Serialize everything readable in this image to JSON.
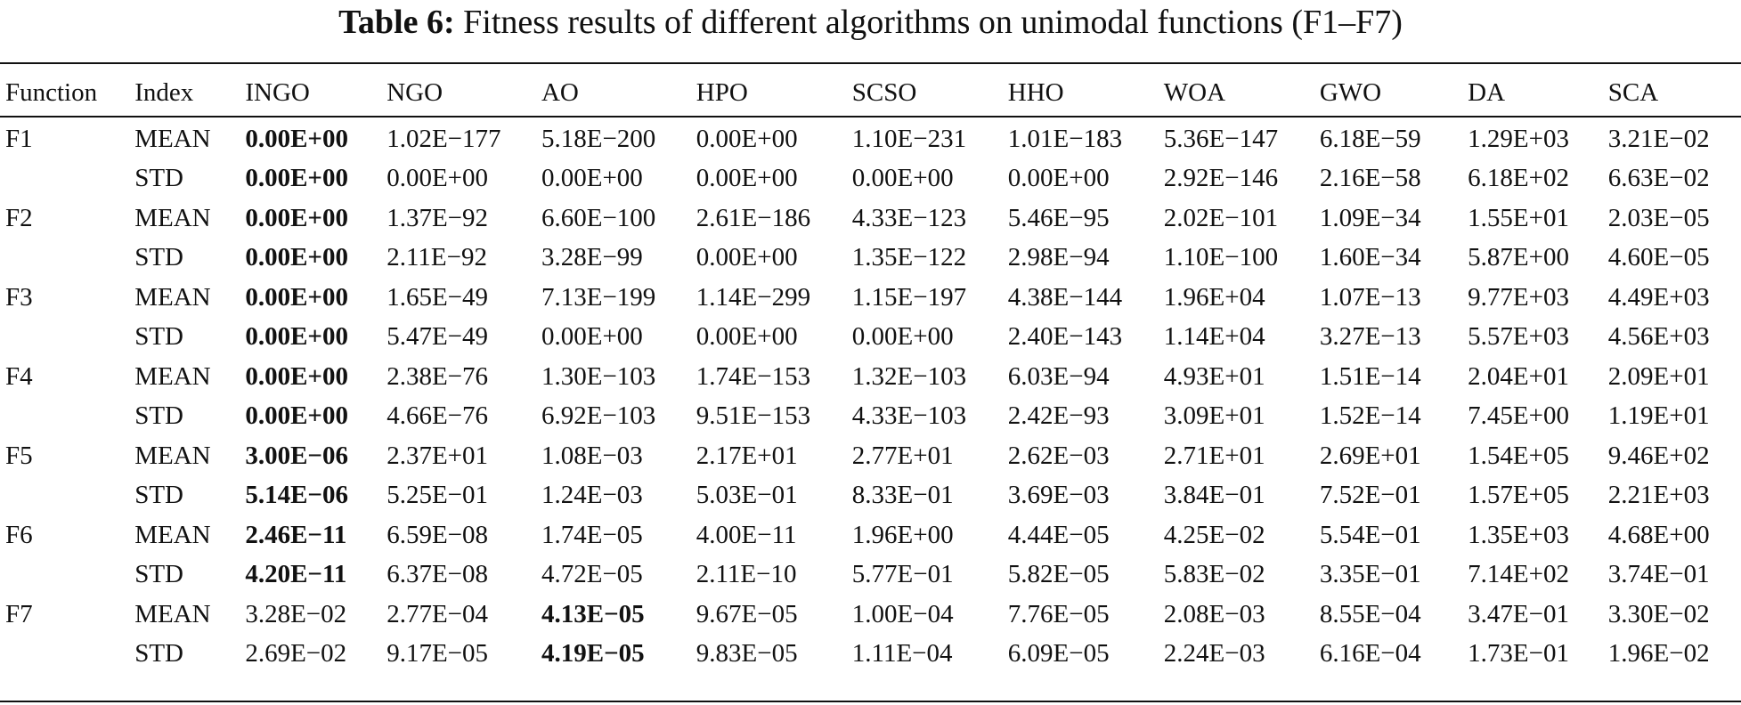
{
  "caption": {
    "label": "Table 6:",
    "text": "Fitness results of different algorithms on unimodal functions (F1–F7)"
  },
  "headers": [
    "Function",
    "Index",
    "INGO",
    "NGO",
    "AO",
    "HPO",
    "SCSO",
    "HHO",
    "WOA",
    "GWO",
    "DA",
    "SCA"
  ],
  "rows": [
    {
      "fn": "F1",
      "idx": "MEAN",
      "vals": [
        "0.00E+00",
        "1.02E−177",
        "5.18E−200",
        "0.00E+00",
        "1.10E−231",
        "1.01E−183",
        "5.36E−147",
        "6.18E−59",
        "1.29E+03",
        "3.21E−02"
      ],
      "bold": [
        0
      ]
    },
    {
      "fn": "",
      "idx": "STD",
      "vals": [
        "0.00E+00",
        "0.00E+00",
        "0.00E+00",
        "0.00E+00",
        "0.00E+00",
        "0.00E+00",
        "2.92E−146",
        "2.16E−58",
        "6.18E+02",
        "6.63E−02"
      ],
      "bold": [
        0
      ]
    },
    {
      "fn": "F2",
      "idx": "MEAN",
      "vals": [
        "0.00E+00",
        "1.37E−92",
        "6.60E−100",
        "2.61E−186",
        "4.33E−123",
        "5.46E−95",
        "2.02E−101",
        "1.09E−34",
        "1.55E+01",
        "2.03E−05"
      ],
      "bold": [
        0
      ]
    },
    {
      "fn": "",
      "idx": "STD",
      "vals": [
        "0.00E+00",
        "2.11E−92",
        "3.28E−99",
        "0.00E+00",
        "1.35E−122",
        "2.98E−94",
        "1.10E−100",
        "1.60E−34",
        "5.87E+00",
        "4.60E−05"
      ],
      "bold": [
        0
      ]
    },
    {
      "fn": "F3",
      "idx": "MEAN",
      "vals": [
        "0.00E+00",
        "1.65E−49",
        "7.13E−199",
        "1.14E−299",
        "1.15E−197",
        "4.38E−144",
        "1.96E+04",
        "1.07E−13",
        "9.77E+03",
        "4.49E+03"
      ],
      "bold": [
        0
      ]
    },
    {
      "fn": "",
      "idx": "STD",
      "vals": [
        "0.00E+00",
        "5.47E−49",
        "0.00E+00",
        "0.00E+00",
        "0.00E+00",
        "2.40E−143",
        "1.14E+04",
        "3.27E−13",
        "5.57E+03",
        "4.56E+03"
      ],
      "bold": [
        0
      ]
    },
    {
      "fn": "F4",
      "idx": "MEAN",
      "vals": [
        "0.00E+00",
        "2.38E−76",
        "1.30E−103",
        "1.74E−153",
        "1.32E−103",
        "6.03E−94",
        "4.93E+01",
        "1.51E−14",
        "2.04E+01",
        "2.09E+01"
      ],
      "bold": [
        0
      ]
    },
    {
      "fn": "",
      "idx": "STD",
      "vals": [
        "0.00E+00",
        "4.66E−76",
        "6.92E−103",
        "9.51E−153",
        "4.33E−103",
        "2.42E−93",
        "3.09E+01",
        "1.52E−14",
        "7.45E+00",
        "1.19E+01"
      ],
      "bold": [
        0
      ]
    },
    {
      "fn": "F5",
      "idx": "MEAN",
      "vals": [
        "3.00E−06",
        "2.37E+01",
        "1.08E−03",
        "2.17E+01",
        "2.77E+01",
        "2.62E−03",
        "2.71E+01",
        "2.69E+01",
        "1.54E+05",
        "9.46E+02"
      ],
      "bold": [
        0
      ]
    },
    {
      "fn": "",
      "idx": "STD",
      "vals": [
        "5.14E−06",
        "5.25E−01",
        "1.24E−03",
        "5.03E−01",
        "8.33E−01",
        "3.69E−03",
        "3.84E−01",
        "7.52E−01",
        "1.57E+05",
        "2.21E+03"
      ],
      "bold": [
        0
      ]
    },
    {
      "fn": "F6",
      "idx": "MEAN",
      "vals": [
        "2.46E−11",
        "6.59E−08",
        "1.74E−05",
        "4.00E−11",
        "1.96E+00",
        "4.44E−05",
        "4.25E−02",
        "5.54E−01",
        "1.35E+03",
        "4.68E+00"
      ],
      "bold": [
        0
      ]
    },
    {
      "fn": "",
      "idx": "STD",
      "vals": [
        "4.20E−11",
        "6.37E−08",
        "4.72E−05",
        "2.11E−10",
        "5.77E−01",
        "5.82E−05",
        "5.83E−02",
        "3.35E−01",
        "7.14E+02",
        "3.74E−01"
      ],
      "bold": [
        0
      ]
    },
    {
      "fn": "F7",
      "idx": "MEAN",
      "vals": [
        "3.28E−02",
        "2.77E−04",
        "4.13E−05",
        "9.67E−05",
        "1.00E−04",
        "7.76E−05",
        "2.08E−03",
        "8.55E−04",
        "3.47E−01",
        "3.30E−02"
      ],
      "bold": [
        2
      ]
    },
    {
      "fn": "",
      "idx": "STD",
      "vals": [
        "2.69E−02",
        "9.17E−05",
        "4.19E−05",
        "9.83E−05",
        "1.11E−04",
        "6.09E−05",
        "2.24E−03",
        "6.16E−04",
        "1.73E−01",
        "1.96E−02"
      ],
      "bold": [
        2
      ]
    }
  ]
}
